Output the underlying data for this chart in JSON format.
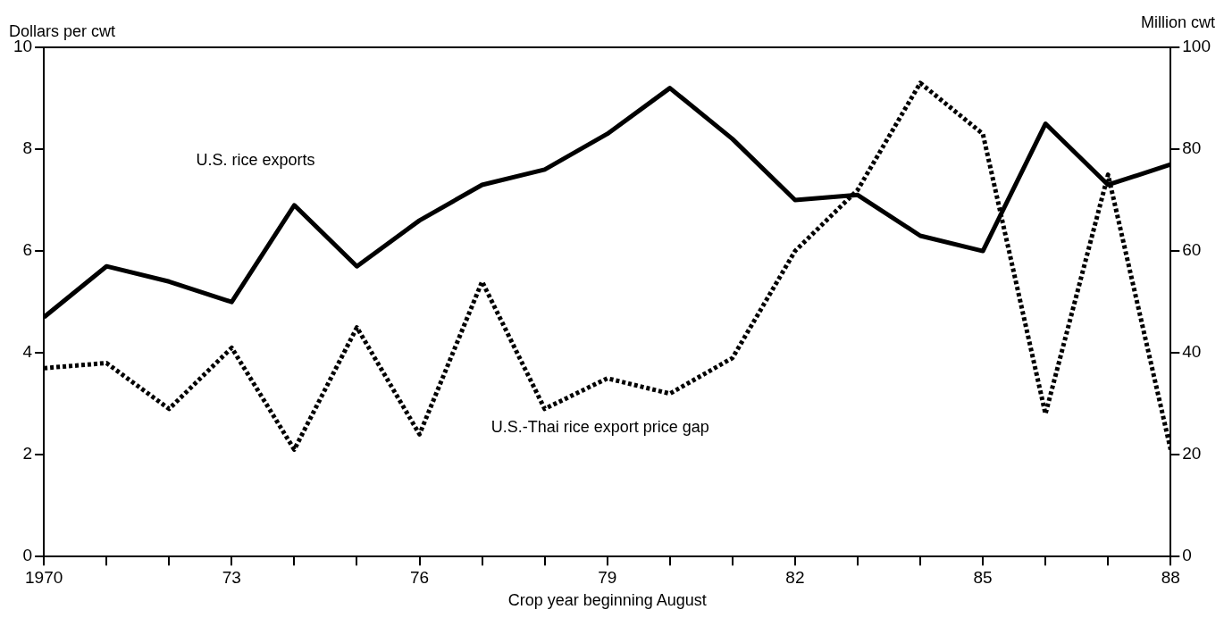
{
  "chart_data": {
    "type": "line",
    "xlabel": "Crop year beginning August",
    "ylabel": "Dollars per cwt",
    "y2label": "Million cwt",
    "x": [
      1970,
      1971,
      1972,
      1973,
      1974,
      1975,
      1976,
      1977,
      1978,
      1979,
      1980,
      1981,
      1982,
      1983,
      1984,
      1985,
      1986,
      1987,
      1988
    ],
    "series": [
      {
        "name": "U.S. rice exports",
        "color": "#000000",
        "axis": "y2",
        "line_style": "solid",
        "values": [
          47,
          57,
          54,
          50,
          69,
          57,
          66,
          73,
          76,
          83,
          92,
          82,
          70,
          71,
          63,
          60,
          85,
          73,
          77
        ]
      },
      {
        "name": "U.S.-Thai rice export price gap",
        "color": "#000000",
        "axis": "y",
        "line_style": "dotted",
        "values": [
          3.7,
          3.8,
          2.9,
          4.1,
          2.1,
          4.5,
          2.4,
          5.4,
          2.9,
          3.5,
          3.2,
          3.9,
          6.0,
          7.2,
          9.3,
          8.3,
          2.8,
          7.5,
          2.1
        ]
      }
    ],
    "xlim": [
      1970,
      1988
    ],
    "xticks": [
      {
        "value": 1970,
        "label": "1970"
      },
      {
        "value": 1971,
        "label": null
      },
      {
        "value": 1972,
        "label": null
      },
      {
        "value": 1973,
        "label": "73"
      },
      {
        "value": 1974,
        "label": null
      },
      {
        "value": 1975,
        "label": null
      },
      {
        "value": 1976,
        "label": "76"
      },
      {
        "value": 1977,
        "label": null
      },
      {
        "value": 1978,
        "label": null
      },
      {
        "value": 1979,
        "label": "79"
      },
      {
        "value": 1980,
        "label": null
      },
      {
        "value": 1981,
        "label": null
      },
      {
        "value": 1982,
        "label": "82"
      },
      {
        "value": 1983,
        "label": null
      },
      {
        "value": 1984,
        "label": null
      },
      {
        "value": 1985,
        "label": "85"
      },
      {
        "value": 1986,
        "label": null
      },
      {
        "value": 1987,
        "label": null
      },
      {
        "value": 1988,
        "label": "88"
      }
    ],
    "ylim": [
      0,
      10
    ],
    "yticks": [
      0,
      2,
      4,
      6,
      8,
      10
    ],
    "y2lim": [
      0,
      100
    ],
    "y2ticks": [
      0,
      20,
      40,
      60,
      80,
      100
    ],
    "grid": false,
    "legend": false,
    "marker": "none"
  }
}
